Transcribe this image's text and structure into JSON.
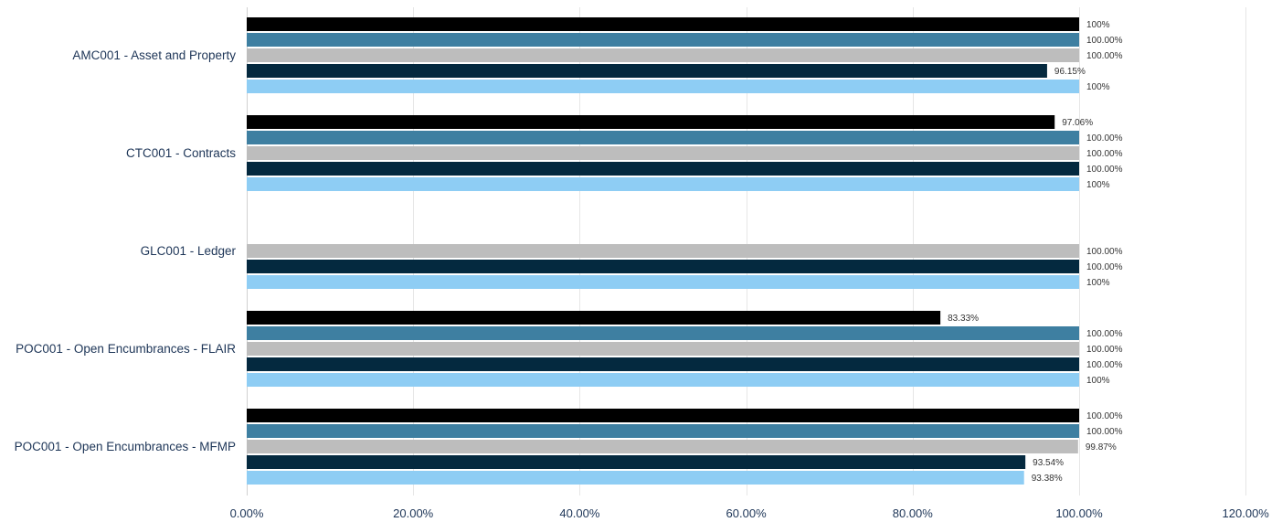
{
  "chart_data": {
    "type": "bar",
    "orientation": "horizontal",
    "grid": true,
    "xlim": [
      0,
      1.2
    ],
    "x_ticks": [
      {
        "value": 0,
        "label": "0.00%"
      },
      {
        "value": 0.2,
        "label": "20.00%"
      },
      {
        "value": 0.4,
        "label": "40.00%"
      },
      {
        "value": 0.6,
        "label": "60.00%"
      },
      {
        "value": 0.8,
        "label": "80.00%"
      },
      {
        "value": 1.0,
        "label": "100.00%"
      },
      {
        "value": 1.2,
        "label": "120.00%"
      }
    ],
    "categories": [
      "AMC001 - Asset and Property",
      "CTC001 - Contracts",
      "GLC001 - Ledger",
      "POC001 - Open Encumbrances - FLAIR",
      "POC001 - Open Encumbrances - MFMP"
    ],
    "series": [
      {
        "color": "#000000",
        "values": [
          1.0,
          0.9706,
          null,
          0.8333,
          1.0
        ],
        "labels": [
          "100%",
          "97.06%",
          "",
          "83.33%",
          "100.00%"
        ]
      },
      {
        "color": "#3e7fa1",
        "values": [
          1.0,
          1.0,
          null,
          1.0,
          1.0
        ],
        "labels": [
          "100.00%",
          "100.00%",
          "",
          "100.00%",
          "100.00%"
        ]
      },
      {
        "color": "#bdbdbd",
        "values": [
          1.0,
          1.0,
          1.0,
          1.0,
          0.9987
        ],
        "labels": [
          "100.00%",
          "100.00%",
          "100.00%",
          "100.00%",
          "99.87%"
        ]
      },
      {
        "color": "#04293f",
        "values": [
          0.9615,
          1.0,
          1.0,
          1.0,
          0.9354
        ],
        "labels": [
          "96.15%",
          "100.00%",
          "100.00%",
          "100.00%",
          "93.54%"
        ]
      },
      {
        "color": "#8ecdf4",
        "values": [
          1.0,
          1.0,
          1.0,
          1.0,
          0.9338
        ],
        "labels": [
          "100%",
          "100%",
          "100%",
          "100%",
          "93.38%"
        ]
      }
    ]
  }
}
